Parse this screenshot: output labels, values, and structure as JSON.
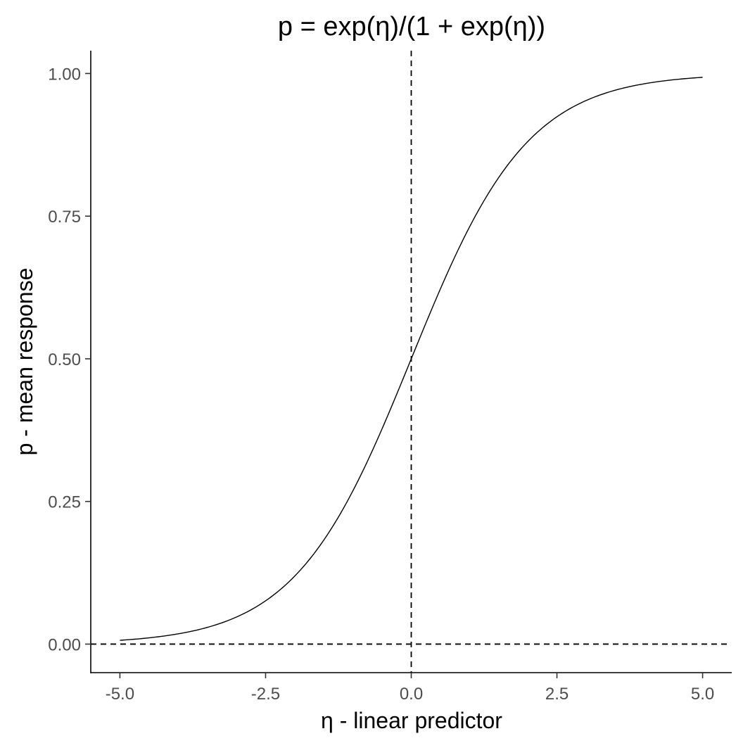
{
  "chart_data": {
    "type": "line",
    "title": "p = exp(η)/(1 + exp(η))",
    "xlabel": "η - linear predictor",
    "ylabel": "p - mean response",
    "xlim": [
      -5.5,
      5.5
    ],
    "ylim": [
      -0.05,
      1.04
    ],
    "x_ticks": [
      -5.0,
      -2.5,
      0.0,
      2.5,
      5.0
    ],
    "x_tick_labels": [
      "-5.0",
      "-2.5",
      "0.0",
      "2.5",
      "5.0"
    ],
    "y_ticks": [
      0.0,
      0.25,
      0.5,
      0.75,
      1.0
    ],
    "y_tick_labels": [
      "0.00",
      "0.25",
      "0.50",
      "0.75",
      "1.00"
    ],
    "grid": false,
    "series": [
      {
        "x": [
          -5.0,
          -4.5,
          -4.0,
          -3.5,
          -3.0,
          -2.5,
          -2.0,
          -1.5,
          -1.0,
          -0.5,
          0.0,
          0.5,
          1.0,
          1.5,
          2.0,
          2.5,
          3.0,
          3.5,
          4.0,
          4.5,
          5.0
        ],
        "y": [
          0.007,
          0.011,
          0.018,
          0.029,
          0.047,
          0.076,
          0.119,
          0.182,
          0.269,
          0.378,
          0.5,
          0.622,
          0.731,
          0.818,
          0.881,
          0.924,
          0.953,
          0.971,
          0.982,
          0.989,
          0.993
        ],
        "color": "#000000"
      }
    ],
    "reference_lines": [
      {
        "orientation": "vertical",
        "value": 0.0,
        "style": "dashed"
      },
      {
        "orientation": "horizontal",
        "value": 0.0,
        "style": "dashed"
      }
    ]
  }
}
